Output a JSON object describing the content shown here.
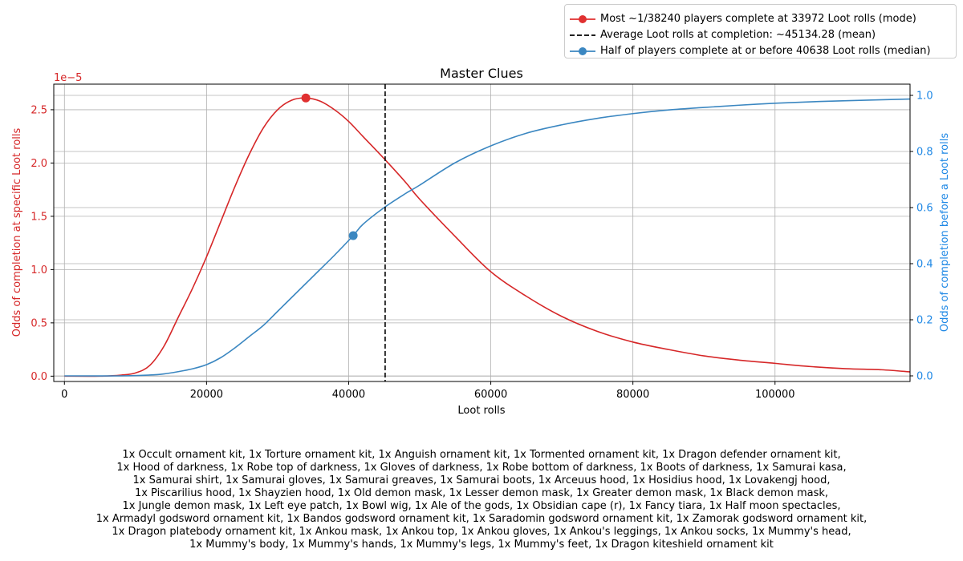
{
  "chart_data": {
    "type": "line",
    "title": "Master Clues",
    "xlabel": "Loot rolls",
    "ylabel_left": "Odds of completion at specific Loot rolls",
    "ylabel_right": "Odds of completion before a Loot rolls",
    "left_axis_offset_label": "1e−5",
    "xlim": [
      -1500,
      119000
    ],
    "ylim_left": [
      -0.05,
      2.74
    ],
    "ylim_right": [
      -0.02,
      1.04
    ],
    "x_ticks": [
      0,
      20000,
      40000,
      60000,
      80000,
      100000
    ],
    "x_tick_labels": [
      "0",
      "20000",
      "40000",
      "60000",
      "80000",
      "100000"
    ],
    "y_left_ticks": [
      0,
      0.5,
      1.0,
      1.5,
      2.0,
      2.5
    ],
    "y_left_tick_labels": [
      "0.0",
      "0.5",
      "1.0",
      "1.5",
      "2.0",
      "2.5"
    ],
    "y_right_ticks": [
      0,
      0.2,
      0.4,
      0.6,
      0.8,
      1.0
    ],
    "y_right_tick_labels": [
      "0.0",
      "0.2",
      "0.4",
      "0.6",
      "0.8",
      "1.0"
    ],
    "grid": true,
    "legend_position": "top-right, above plot",
    "series": [
      {
        "name": "pmf",
        "axis": "left",
        "color": "#d62728",
        "x": [
          0,
          5000,
          8000,
          10000,
          12000,
          14000,
          16000,
          18000,
          20000,
          22000,
          24000,
          26000,
          28000,
          30000,
          32000,
          33972,
          36000,
          38000,
          40000,
          42000,
          45000,
          48000,
          50000,
          55000,
          60000,
          65000,
          70000,
          75000,
          80000,
          85000,
          90000,
          95000,
          100000,
          105000,
          110000,
          115000,
          119000
        ],
        "values": [
          0,
          0,
          0.01,
          0.03,
          0.1,
          0.28,
          0.55,
          0.82,
          1.12,
          1.45,
          1.78,
          2.08,
          2.33,
          2.5,
          2.59,
          2.61,
          2.58,
          2.5,
          2.39,
          2.25,
          2.04,
          1.82,
          1.66,
          1.31,
          0.98,
          0.75,
          0.56,
          0.42,
          0.32,
          0.25,
          0.19,
          0.15,
          0.12,
          0.09,
          0.07,
          0.06,
          0.04
        ]
      },
      {
        "name": "cdf",
        "axis": "right",
        "color": "#3b87c1",
        "x": [
          0,
          8000,
          12000,
          14000,
          16000,
          18000,
          20000,
          22000,
          24000,
          26000,
          28000,
          30000,
          32000,
          34000,
          36000,
          38000,
          40638,
          42000,
          45000,
          48000,
          50000,
          55000,
          60000,
          65000,
          70000,
          75000,
          80000,
          85000,
          90000,
          95000,
          100000,
          105000,
          110000,
          119000
        ],
        "values": [
          0,
          0,
          0.003,
          0.007,
          0.015,
          0.025,
          0.04,
          0.065,
          0.1,
          0.14,
          0.18,
          0.23,
          0.28,
          0.33,
          0.38,
          0.43,
          0.5,
          0.54,
          0.6,
          0.65,
          0.68,
          0.76,
          0.82,
          0.865,
          0.895,
          0.918,
          0.935,
          0.948,
          0.957,
          0.965,
          0.972,
          0.977,
          0.981,
          0.987
        ]
      }
    ],
    "markers": [
      {
        "name": "mode",
        "axis": "left",
        "x": 33972,
        "y": 2.61,
        "color": "#e03030"
      },
      {
        "name": "median",
        "axis": "right",
        "x": 40638,
        "y": 0.5,
        "color": "#3b87c1"
      }
    ],
    "mean_line": {
      "x": 45134.28,
      "color": "#000000"
    },
    "legend": [
      {
        "label": "Most ~1/38240 players complete at 33972 Loot rolls (mode)",
        "style": "line-dot",
        "color": "#e03030"
      },
      {
        "label": "Average Loot rolls at completion: ~45134.28 (mean)",
        "style": "dashed",
        "color": "#000000"
      },
      {
        "label": "Half of players complete at or before 40638 Loot rolls (median)",
        "style": "line-dot",
        "color": "#3b87c1"
      }
    ],
    "caption_lines": [
      "1x Occult ornament kit, 1x Torture ornament kit, 1x Anguish ornament kit, 1x Tormented ornament kit, 1x Dragon defender ornament kit,",
      "1x Hood of darkness, 1x Robe top of darkness, 1x Gloves of darkness, 1x Robe bottom of darkness, 1x Boots of darkness, 1x Samurai kasa,",
      "1x Samurai shirt, 1x Samurai gloves, 1x Samurai greaves, 1x Samurai boots, 1x Arceuus hood, 1x Hosidius hood, 1x Lovakengj hood,",
      "1x Piscarilius hood, 1x Shayzien hood, 1x Old demon mask, 1x Lesser demon mask, 1x Greater demon mask, 1x Black demon mask,",
      "1x Jungle demon mask, 1x Left eye patch, 1x Bowl wig, 1x Ale of the gods, 1x Obsidian cape (r), 1x Fancy tiara, 1x Half moon spectacles,",
      "1x Armadyl godsword ornament kit, 1x Bandos godsword ornament kit, 1x Saradomin godsword ornament kit, 1x Zamorak godsword ornament kit,",
      "1x Dragon platebody ornament kit, 1x Ankou mask, 1x Ankou top, 1x Ankou gloves, 1x Ankou's leggings, 1x Ankou socks, 1x Mummy's head,",
      "1x Mummy's body, 1x Mummy's hands, 1x Mummy's legs, 1x Mummy's feet, 1x Dragon kiteshield ornament kit"
    ],
    "colors": {
      "left_axis": "#d62728",
      "right_axis": "#1f88e5",
      "grid": "#b0b0b0"
    }
  }
}
